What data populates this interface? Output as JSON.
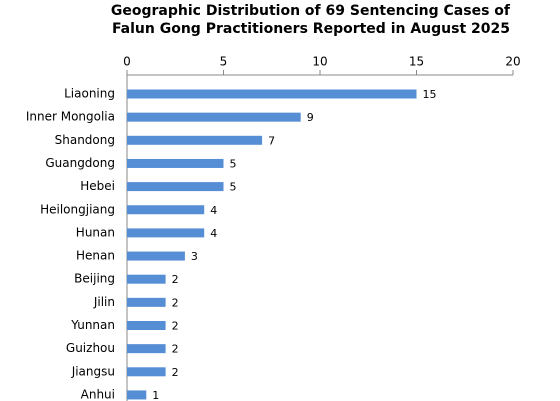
{
  "chart_data": {
    "type": "bar",
    "orientation": "horizontal",
    "title": [
      "Geographic Distribution of 69 Sentencing Cases of",
      "Falun Gong Practitioners Reported in August 2025"
    ],
    "categories": [
      "Liaoning",
      "Inner Mongolia",
      "Shandong",
      "Guangdong",
      "Hebei",
      "Heilongjiang",
      "Hunan",
      "Henan",
      "Beijing",
      "Jilin",
      "Yunnan",
      "Guizhou",
      "Jiangsu",
      "Anhui"
    ],
    "values": [
      15,
      9,
      7,
      5,
      5,
      4,
      4,
      3,
      2,
      2,
      2,
      2,
      2,
      1
    ],
    "color": "#558ed5",
    "xlim": [
      0,
      20
    ],
    "xticks": [
      0,
      5,
      10,
      15,
      20
    ],
    "grid": false
  }
}
